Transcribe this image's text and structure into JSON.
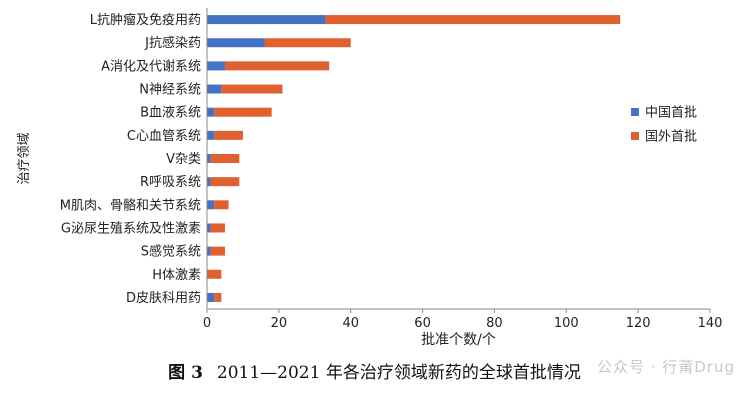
{
  "chart_data": {
    "type": "bar",
    "orientation": "horizontal",
    "stacked": true,
    "categories": [
      "L抗肿瘤及免疫用药",
      "J抗感染药",
      "A消化及代谢系统",
      "N神经系统",
      "B血液系统",
      "C心血管系统",
      "V杂类",
      "R呼吸系统",
      "M肌肉、骨骼和关节系统",
      "G泌尿生殖系统及性激素",
      "S感觉系统",
      "H体激素",
      "D皮肤科用药"
    ],
    "series": [
      {
        "name": "中国首批",
        "color": "#4472C4",
        "values": [
          33,
          16,
          5,
          4,
          2,
          2,
          1,
          1,
          2,
          1,
          1,
          0,
          2
        ]
      },
      {
        "name": "国外首批",
        "color": "#E0612F",
        "values": [
          82,
          24,
          29,
          17,
          16,
          8,
          8,
          8,
          4,
          4,
          4,
          4,
          2
        ]
      }
    ],
    "xlabel": "批准个数/个",
    "ylabel": "治疗领域",
    "xlim": [
      0,
      140
    ],
    "xticks": [
      0,
      20,
      40,
      60,
      80,
      100,
      120,
      140
    ],
    "grid": false,
    "legend_position": "right"
  },
  "caption": {
    "figure_label": "图 3",
    "text": "2011—2021 年各治疗领域新药的全球首批情况"
  },
  "watermark": "公众号 · 行莆Drug"
}
